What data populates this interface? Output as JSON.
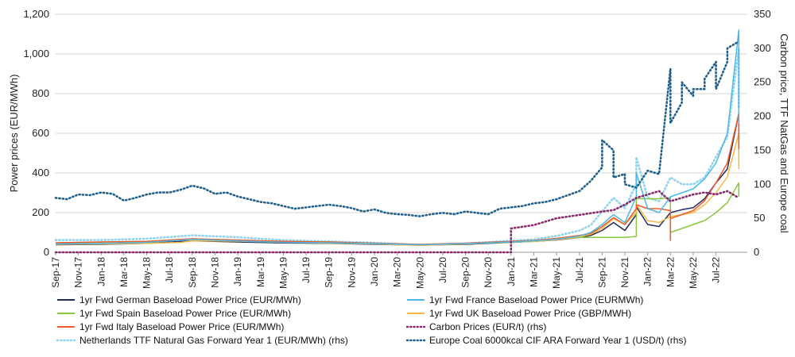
{
  "chart_data": {
    "type": "line",
    "x_start": "Sep-17",
    "x_end": "Sep-22",
    "x_tick_labels": [
      "Sep-17",
      "Nov-17",
      "Jan-18",
      "Mar-18",
      "May-18",
      "Jul-18",
      "Sep-18",
      "Nov-18",
      "Jan-19",
      "Mar-19",
      "May-19",
      "Jul-19",
      "Sep-19",
      "Nov-19",
      "Jan-20",
      "Mar-20",
      "May-20",
      "Jul-20",
      "Sep-20",
      "Nov-20",
      "Jan-21",
      "Mar-21",
      "May-21",
      "Jul-21",
      "Sep-21",
      "Nov-21",
      "Jan-22",
      "Mar-22",
      "May-22",
      "Jul-22"
    ],
    "ylabel_left": "Power prices (EUR/MWh)",
    "ylabel_right": "Carbon price, TTF NatGas and Europe coal",
    "ylim_left": [
      0,
      1200
    ],
    "ylim_right": [
      0,
      350
    ],
    "y_left_ticks": [
      0,
      200,
      400,
      600,
      800,
      1000,
      1200
    ],
    "y_left_tick_labels": [
      "0",
      "200",
      "400",
      "600",
      "800",
      "1,000",
      "1,200"
    ],
    "y_right_ticks": [
      0,
      50,
      100,
      150,
      200,
      250,
      300,
      350
    ],
    "y_right_tick_labels": [
      "0",
      "50",
      "100",
      "150",
      "200",
      "250",
      "300",
      "350"
    ],
    "grid": "horizontal",
    "legend_position": "bottom",
    "series": [
      {
        "name": "1yr Fwd German Baseload Power Price (EUR/MWh)",
        "axis": "left",
        "color": "#1f2a5c",
        "style": "solid",
        "points": [
          [
            "Sep-17",
            38
          ],
          [
            "Jan-18",
            40
          ],
          [
            "May-18",
            45
          ],
          [
            "Sep-18",
            58
          ],
          [
            "Jan-19",
            52
          ],
          [
            "May-19",
            47
          ],
          [
            "Sep-19",
            45
          ],
          [
            "Jan-20",
            40
          ],
          [
            "May-20",
            36
          ],
          [
            "Sep-20",
            40
          ],
          [
            "Jan-21",
            50
          ],
          [
            "Mar-21",
            55
          ],
          [
            "May-21",
            62
          ],
          [
            "Jul-21",
            75
          ],
          [
            "Aug-21",
            85
          ],
          [
            "Sep-21",
            110
          ],
          [
            "Oct-21",
            150
          ],
          [
            "Nov-21",
            110
          ],
          [
            "Dec-21",
            190
          ],
          [
            "Dec-21",
            230
          ],
          [
            "Jan-22",
            140
          ],
          [
            "Feb-22",
            130
          ],
          [
            "Mar-22",
            200
          ],
          [
            "Apr-22",
            215
          ],
          [
            "May-22",
            225
          ],
          [
            "Jun-22",
            270
          ],
          [
            "Jul-22",
            350
          ],
          [
            "Aug-22",
            420
          ],
          [
            "Sep-22",
            700
          ],
          [
            "Sep-22",
            500
          ]
        ]
      },
      {
        "name": "1yr Fwd France Baseload Power Price (EURMWh)",
        "axis": "left",
        "color": "#4db8e8",
        "style": "solid",
        "points": [
          [
            "Sep-17",
            42
          ],
          [
            "Jan-18",
            45
          ],
          [
            "May-18",
            50
          ],
          [
            "Sep-18",
            65
          ],
          [
            "Jan-19",
            58
          ],
          [
            "May-19",
            50
          ],
          [
            "Sep-19",
            48
          ],
          [
            "Jan-20",
            44
          ],
          [
            "May-20",
            38
          ],
          [
            "Sep-20",
            44
          ],
          [
            "Jan-21",
            52
          ],
          [
            "Mar-21",
            58
          ],
          [
            "May-21",
            66
          ],
          [
            "Jul-21",
            82
          ],
          [
            "Aug-21",
            100
          ],
          [
            "Sep-21",
            140
          ],
          [
            "Oct-21",
            190
          ],
          [
            "Nov-21",
            150
          ],
          [
            "Dec-21",
            280
          ],
          [
            "Dec-21",
            400
          ],
          [
            "Jan-22",
            220
          ],
          [
            "Feb-22",
            200
          ],
          [
            "Mar-22",
            280
          ],
          [
            "Apr-22",
            300
          ],
          [
            "May-22",
            320
          ],
          [
            "Jun-22",
            370
          ],
          [
            "Jul-22",
            450
          ],
          [
            "Aug-22",
            600
          ],
          [
            "Sep-22",
            1120
          ],
          [
            "Sep-22",
            650
          ]
        ]
      },
      {
        "name": "1yr Fwd Spain Baseload Power Price (EUR/MWh)",
        "axis": "left",
        "color": "#8dc63f",
        "style": "solid",
        "points": [
          [
            "Sep-17",
            42
          ],
          [
            "Jan-18",
            52
          ],
          [
            "May-18",
            55
          ],
          [
            "Sep-18",
            68
          ],
          [
            "Jan-19",
            60
          ],
          [
            "May-19",
            55
          ],
          [
            "Sep-19",
            52
          ],
          [
            "Jan-20",
            45
          ],
          [
            "May-20",
            38
          ],
          [
            "Sep-20",
            45
          ],
          [
            "Jan-21",
            50
          ],
          [
            "Mar-21",
            55
          ],
          [
            "May-21",
            65
          ],
          [
            "Jul-21",
            75
          ],
          [
            "Sep-21",
            75
          ],
          [
            "Nov-21",
            75
          ],
          [
            "Dec-21",
            80
          ],
          [
            "Dec-21",
            270
          ],
          [
            "Jan-22",
            270
          ],
          [
            "Feb-22",
            270
          ],
          [
            "Mar-22",
            275
          ],
          [
            "Mar-22",
            100
          ],
          [
            "Apr-22",
            120
          ],
          [
            "May-22",
            140
          ],
          [
            "Jun-22",
            160
          ],
          [
            "Jul-22",
            200
          ],
          [
            "Aug-22",
            250
          ],
          [
            "Sep-22",
            350
          ],
          [
            "Sep-22",
            280
          ]
        ]
      },
      {
        "name": "1yr Fwd UK Baseload Power Price (GBP/MWH)",
        "axis": "left",
        "color": "#f4b942",
        "style": "solid",
        "points": [
          [
            "Sep-17",
            40
          ],
          [
            "Jan-18",
            42
          ],
          [
            "May-18",
            45
          ],
          [
            "Aug-18",
            50
          ],
          [
            "Sep-18",
            58
          ],
          [
            "Jan-19",
            56
          ],
          [
            "May-19",
            50
          ],
          [
            "Sep-19",
            46
          ],
          [
            "Jan-20",
            42
          ],
          [
            "May-20",
            35
          ],
          [
            "Sep-20",
            42
          ],
          [
            "Jan-21",
            52
          ],
          [
            "Mar-21",
            55
          ],
          [
            "May-21",
            63
          ],
          [
            "Jul-21",
            78
          ],
          [
            "Aug-21",
            90
          ],
          [
            "Sep-21",
            120
          ],
          [
            "Oct-21",
            170
          ],
          [
            "Nov-21",
            140
          ],
          [
            "Dec-21",
            200
          ],
          [
            "Dec-21",
            240
          ],
          [
            "Jan-22",
            160
          ],
          [
            "Feb-22",
            150
          ],
          [
            "Mar-22",
            180
          ],
          [
            "Apr-22",
            190
          ],
          [
            "May-22",
            200
          ],
          [
            "Jun-22",
            240
          ],
          [
            "Jul-22",
            300
          ],
          [
            "Aug-22",
            380
          ],
          [
            "Sep-22",
            600
          ],
          [
            "Sep-22",
            420
          ]
        ]
      },
      {
        "name": "1yr Fwd Italy Baseload Power Price (EUR/MWh)",
        "axis": "left",
        "color": "#f05a28",
        "style": "solid",
        "points": [
          [
            "Sep-17",
            48
          ],
          [
            "Jan-18",
            52
          ],
          [
            "May-18",
            55
          ],
          [
            "Sep-18",
            68
          ],
          [
            "Jan-19",
            62
          ],
          [
            "May-19",
            55
          ],
          [
            "Sep-19",
            52
          ],
          [
            "Jan-20",
            46
          ],
          [
            "May-20",
            40
          ],
          [
            "Sep-20",
            46
          ],
          [
            "Jan-21",
            55
          ],
          [
            "Mar-21",
            60
          ],
          [
            "May-21",
            70
          ],
          [
            "Jul-21",
            85
          ],
          [
            "Aug-21",
            95
          ],
          [
            "Sep-21",
            130
          ],
          [
            "Oct-21",
            175
          ],
          [
            "Nov-21",
            140
          ],
          [
            "Dec-21",
            220
          ],
          [
            "Dec-21",
            240
          ],
          [
            "Jan-22",
            220
          ],
          [
            "Feb-22",
            220
          ],
          [
            "Mar-22",
            210
          ],
          [
            "Mar-22",
            60
          ],
          [
            "Mar-22",
            170
          ],
          [
            "Apr-22",
            190
          ],
          [
            "May-22",
            210
          ],
          [
            "Jun-22",
            260
          ],
          [
            "Jul-22",
            350
          ],
          [
            "Aug-22",
            450
          ],
          [
            "Sep-22",
            700
          ],
          [
            "Sep-22",
            520
          ]
        ]
      },
      {
        "name": "Carbon Prices (EUR/t) (rhs)",
        "axis": "right",
        "color": "#8b2a6b",
        "style": "dotted",
        "points": [
          [
            "Sep-17",
            0
          ],
          [
            "Jan-21",
            0
          ],
          [
            "Jan-21",
            35
          ],
          [
            "Mar-21",
            40
          ],
          [
            "May-21",
            50
          ],
          [
            "Jul-21",
            55
          ],
          [
            "Sep-21",
            60
          ],
          [
            "Oct-21",
            62
          ],
          [
            "Nov-21",
            70
          ],
          [
            "Dec-21",
            80
          ],
          [
            "Feb-22",
            90
          ],
          [
            "Mar-22",
            75
          ],
          [
            "Apr-22",
            80
          ],
          [
            "May-22",
            85
          ],
          [
            "Jun-22",
            88
          ],
          [
            "Jul-22",
            85
          ],
          [
            "Aug-22",
            90
          ],
          [
            "Sep-22",
            80
          ]
        ]
      },
      {
        "name": "Netherlands TTF Natural Gas Forward Year 1 (EUR/MWh) (rhs)",
        "axis": "right",
        "color": "#8fd3f0",
        "style": "dotted",
        "points": [
          [
            "Sep-17",
            18
          ],
          [
            "Jan-18",
            18
          ],
          [
            "May-18",
            20
          ],
          [
            "Sep-18",
            25
          ],
          [
            "Jan-19",
            22
          ],
          [
            "May-19",
            18
          ],
          [
            "Sep-19",
            16
          ],
          [
            "Jan-20",
            14
          ],
          [
            "May-20",
            11
          ],
          [
            "Sep-20",
            13
          ],
          [
            "Jan-21",
            17
          ],
          [
            "Mar-21",
            19
          ],
          [
            "May-21",
            24
          ],
          [
            "Jul-21",
            32
          ],
          [
            "Aug-21",
            40
          ],
          [
            "Sep-21",
            60
          ],
          [
            "Oct-21",
            80
          ],
          [
            "Nov-21",
            65
          ],
          [
            "Dec-21",
            100
          ],
          [
            "Dec-21",
            140
          ],
          [
            "Jan-22",
            80
          ],
          [
            "Feb-22",
            75
          ],
          [
            "Mar-22",
            110
          ],
          [
            "Apr-22",
            100
          ],
          [
            "May-22",
            100
          ],
          [
            "Jun-22",
            110
          ],
          [
            "Jul-22",
            140
          ],
          [
            "Aug-22",
            170
          ],
          [
            "Sep-22",
            300
          ],
          [
            "Sep-22",
            210
          ]
        ]
      },
      {
        "name": "Europe Coal 6000kcal CIF ARA Forward Year 1 (USD/t) (rhs)",
        "axis": "right",
        "color": "#1f5f8b",
        "style": "dotted",
        "points": [
          [
            "Sep-17",
            80
          ],
          [
            "Oct-17",
            78
          ],
          [
            "Nov-17",
            85
          ],
          [
            "Dec-17",
            84
          ],
          [
            "Jan-18",
            88
          ],
          [
            "Feb-18",
            86
          ],
          [
            "Mar-18",
            76
          ],
          [
            "Apr-18",
            80
          ],
          [
            "May-18",
            85
          ],
          [
            "Jun-18",
            88
          ],
          [
            "Jul-18",
            88
          ],
          [
            "Aug-18",
            92
          ],
          [
            "Sep-18",
            98
          ],
          [
            "Oct-18",
            94
          ],
          [
            "Nov-18",
            86
          ],
          [
            "Dec-18",
            88
          ],
          [
            "Jan-19",
            82
          ],
          [
            "Feb-19",
            78
          ],
          [
            "Mar-19",
            74
          ],
          [
            "Apr-19",
            72
          ],
          [
            "May-19",
            68
          ],
          [
            "Jun-19",
            64
          ],
          [
            "Jul-19",
            66
          ],
          [
            "Aug-19",
            68
          ],
          [
            "Sep-19",
            70
          ],
          [
            "Oct-19",
            68
          ],
          [
            "Nov-19",
            65
          ],
          [
            "Dec-19",
            60
          ],
          [
            "Jan-20",
            63
          ],
          [
            "Feb-20",
            58
          ],
          [
            "Mar-20",
            56
          ],
          [
            "Apr-20",
            55
          ],
          [
            "May-20",
            53
          ],
          [
            "Jun-20",
            56
          ],
          [
            "Jul-20",
            58
          ],
          [
            "Aug-20",
            56
          ],
          [
            "Sep-20",
            60
          ],
          [
            "Oct-20",
            58
          ],
          [
            "Nov-20",
            56
          ],
          [
            "Dec-20",
            64
          ],
          [
            "Jan-21",
            66
          ],
          [
            "Feb-21",
            68
          ],
          [
            "Mar-21",
            72
          ],
          [
            "Apr-21",
            74
          ],
          [
            "May-21",
            78
          ],
          [
            "Jun-21",
            84
          ],
          [
            "Jul-21",
            90
          ],
          [
            "Aug-21",
            105
          ],
          [
            "Sep-21",
            125
          ],
          [
            "Sep-21",
            165
          ],
          [
            "Oct-21",
            150
          ],
          [
            "Oct-21",
            110
          ],
          [
            "Nov-21",
            115
          ],
          [
            "Nov-21",
            100
          ],
          [
            "Dec-21",
            95
          ],
          [
            "Jan-22",
            120
          ],
          [
            "Feb-22",
            115
          ],
          [
            "Mar-22",
            270
          ],
          [
            "Mar-22",
            190
          ],
          [
            "Apr-22",
            220
          ],
          [
            "Apr-22",
            250
          ],
          [
            "May-22",
            230
          ],
          [
            "May-22",
            240
          ],
          [
            "Jun-22",
            240
          ],
          [
            "Jun-22",
            255
          ],
          [
            "Jul-22",
            280
          ],
          [
            "Jul-22",
            240
          ],
          [
            "Aug-22",
            280
          ],
          [
            "Aug-22",
            300
          ],
          [
            "Sep-22",
            310
          ]
        ]
      }
    ]
  }
}
